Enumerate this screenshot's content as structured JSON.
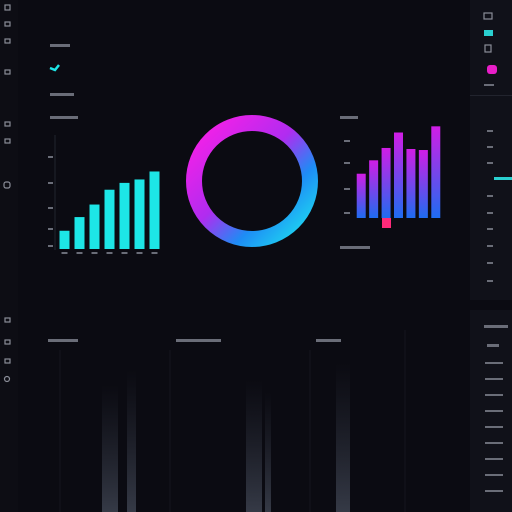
{
  "chart_data": [
    {
      "type": "bar",
      "values": [
        16,
        28,
        39,
        52,
        58,
        61,
        68
      ],
      "color": "#1de6e6",
      "ylim": [
        0,
        100
      ]
    },
    {
      "type": "bar",
      "values": [
        43,
        56,
        68,
        83,
        67,
        66,
        89
      ],
      "color": "#d11de6",
      "ylim": [
        0,
        100
      ]
    }
  ]
}
